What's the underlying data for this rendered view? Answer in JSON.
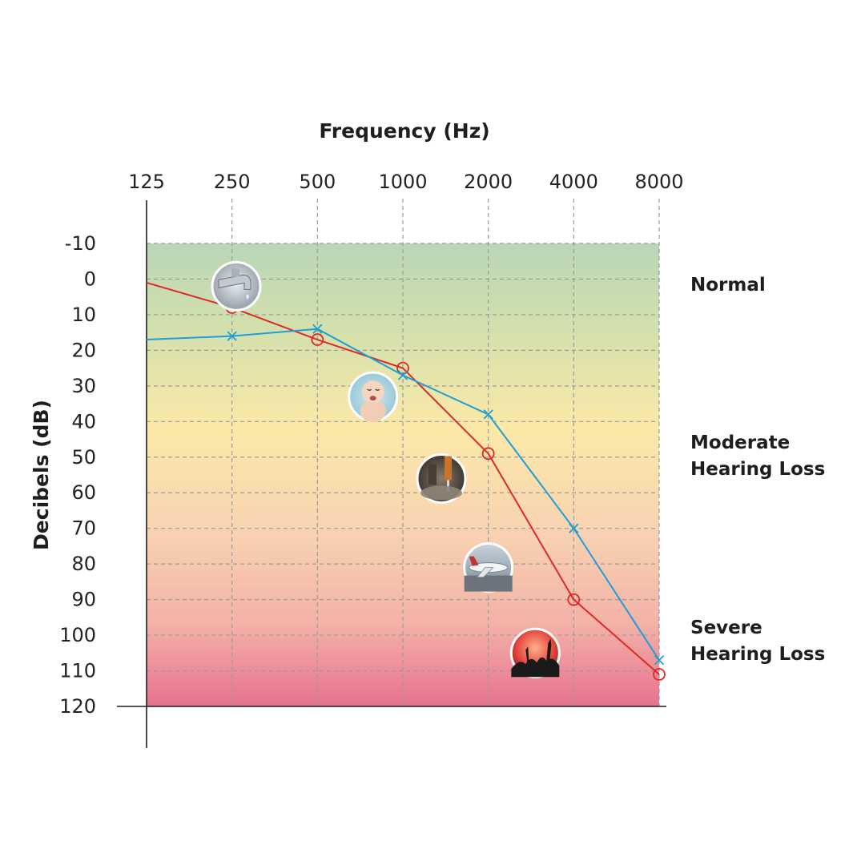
{
  "chart_data": {
    "type": "line",
    "title": "",
    "xlabel": "Frequency (Hz)",
    "ylabel": "Decibels (dB)",
    "x_categories": [
      "125",
      "250",
      "500",
      "1000",
      "2000",
      "4000",
      "8000"
    ],
    "y_ticks": [
      "-10",
      "0",
      "10",
      "20",
      "30",
      "40",
      "50",
      "60",
      "70",
      "80",
      "90",
      "100",
      "110",
      "120"
    ],
    "ylim": [
      -10,
      120
    ],
    "y_inverted": true,
    "grid": "dashed",
    "series": [
      {
        "marker": "circle",
        "color": "#e02828",
        "values": [
          1,
          8,
          17,
          25,
          49,
          90,
          111
        ]
      },
      {
        "marker": "x",
        "color": "#1e9fd6",
        "values": [
          17,
          16,
          14,
          27,
          38,
          70,
          107
        ]
      }
    ],
    "bands": [
      {
        "label": "Normal",
        "colors": [
          "#b9d6b7",
          "#eee7a4"
        ]
      },
      {
        "label": "Moderate\nHearing Loss",
        "colors": [
          "#fbe9a8",
          "#f7cdb2"
        ]
      },
      {
        "label": "Severe\nHearing Loss",
        "colors": [
          "#f4b6a9",
          "#e7728e"
        ]
      }
    ],
    "annotations": [
      {
        "icon": "dripping-faucet-icon",
        "x": 1.05,
        "y": 2
      },
      {
        "icon": "crying-baby-icon",
        "x": 2.65,
        "y": 33
      },
      {
        "icon": "jackhammer-icon",
        "x": 3.45,
        "y": 56
      },
      {
        "icon": "airplane-icon",
        "x": 4.0,
        "y": 81
      },
      {
        "icon": "concert-crowd-icon",
        "x": 4.55,
        "y": 105
      }
    ]
  },
  "band_labels": {
    "normal": "Normal",
    "moderate_line1": "Moderate",
    "moderate_line2": "Hearing Loss",
    "severe_line1": "Severe",
    "severe_line2": "Hearing Loss"
  }
}
